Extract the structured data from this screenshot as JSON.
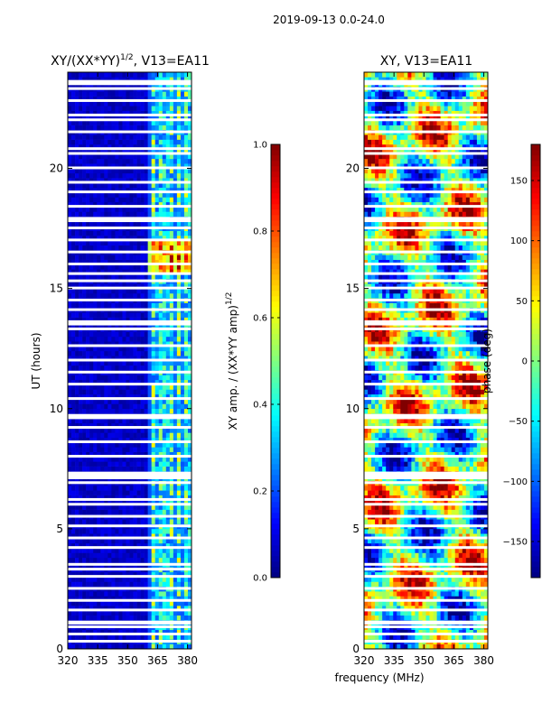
{
  "chart_data": {
    "type": "heatmap",
    "suptitle": "2019-09-13 0.0-24.0",
    "xlabel": "frequency (MHz)",
    "panels": [
      {
        "title": "XY/(XX*YY)",
        "title_sup": "1/2",
        "title_suffix": ", V13=EA11",
        "ylabel": "UT (hours)",
        "xlim": [
          320,
          382
        ],
        "ylim": [
          0,
          24
        ],
        "xticks": [
          320,
          335,
          350,
          365,
          380
        ],
        "yticks": [
          0,
          5,
          10,
          15,
          20
        ],
        "cmap": "jet",
        "colorbar": {
          "label": "XY amp. / (XX*YY amp)",
          "label_sup": "1/2",
          "range": [
            0.0,
            1.0
          ],
          "ticks": [
            0.0,
            0.2,
            0.4,
            0.6,
            0.8,
            1.0
          ],
          "tick_labels": [
            "0.0",
            "0.2",
            "0.4",
            "0.6",
            "0.8",
            "1.0"
          ]
        }
      },
      {
        "title": "XY, V13=EA11",
        "ylabel": "",
        "xlim": [
          320,
          382
        ],
        "ylim": [
          0,
          24
        ],
        "xticks": [
          320,
          335,
          350,
          365,
          380
        ],
        "yticks": [
          0,
          5,
          10,
          15,
          20
        ],
        "cmap": "jet",
        "colorbar": {
          "label": "phase (deg)",
          "range": [
            -180,
            180
          ],
          "ticks": [
            -150,
            -100,
            -50,
            0,
            50,
            100,
            150
          ],
          "tick_labels": [
            "−150",
            "−100",
            "−50",
            "0",
            "50",
            "100",
            "150"
          ]
        }
      }
    ],
    "flagged_hours": [
      0.3,
      0.6,
      0.9,
      1.05,
      1.1,
      1.6,
      2.0,
      2.5,
      3.0,
      3.3,
      3.5,
      4.2,
      4.6,
      5.1,
      5.5,
      6.0,
      6.2,
      6.9,
      7.1,
      7.2,
      7.3,
      8.0,
      8.6,
      9.2,
      9.6,
      9.7,
      10.4,
      11.0,
      11.5,
      12.0,
      12.6,
      13.3,
      13.5,
      13.6,
      14.1,
      14.5,
      15.0,
      15.3,
      15.6,
      16.0,
      16.5,
      17.0,
      17.5,
      17.8,
      17.9,
      18.4,
      19.0,
      19.4,
      20.0,
      20.6,
      20.8,
      21.5,
      22.0,
      22.2,
      22.8,
      23.3,
      23.5,
      23.6
    ],
    "flagged_hours_phase": [
      0.3,
      0.6,
      0.9,
      1.05,
      1.1,
      1.6,
      2.0,
      2.5,
      3.0,
      3.3,
      3.5,
      4.2,
      4.6,
      5.1,
      5.5,
      6.0,
      6.2,
      6.9,
      7.1,
      7.2,
      7.3,
      8.0,
      8.6,
      9.2,
      9.6,
      9.7,
      10.4,
      11.0,
      11.5,
      12.0,
      12.6,
      13.3,
      13.5,
      13.6,
      14.1,
      14.5,
      15.0,
      15.3,
      15.6,
      16.0,
      16.5,
      17.0,
      17.5,
      17.8,
      17.9,
      18.4,
      19.0,
      19.4,
      20.0,
      20.6,
      20.8,
      21.5,
      22.0,
      22.2,
      22.8,
      23.3,
      23.5,
      23.6
    ],
    "hot_band_mhz": [
      361,
      382
    ]
  }
}
